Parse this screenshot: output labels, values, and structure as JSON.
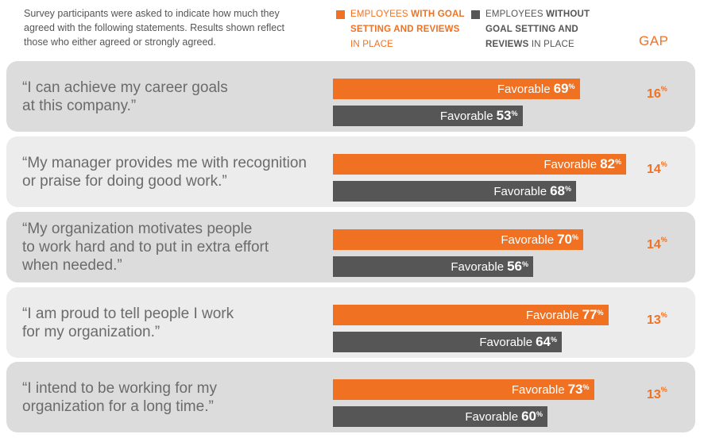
{
  "intro": "Survey participants were asked to indicate how much they agreed with the following statements. Results shown reflect those who either agreed or strongly agreed.",
  "legend": {
    "with": {
      "pre": "EMPLOYEES ",
      "bold": "WITH GOAL SETTING AND REVIEWS",
      "post": " IN PLACE",
      "color": "#f07122"
    },
    "without": {
      "pre": "EMPLOYEES ",
      "bold": "WITHOUT GOAL SETTING AND REVIEWS",
      "post": " IN PLACE",
      "color": "#565656"
    }
  },
  "gap_title": "GAP",
  "bar_prefix": "Favorable",
  "percent_sign": "%",
  "chart_data": {
    "type": "bar",
    "orientation": "horizontal",
    "categories": [
      "“I can achieve my career goals at this company.”",
      "“My manager provides me with recognition or praise for doing good work.”",
      "“My organization motivates people to work hard and to put in extra effort when needed.”",
      "“I am proud to tell people I work for my organization.”",
      "“I intend to be working for my organization for a long time.”"
    ],
    "series": [
      {
        "name": "EMPLOYEES WITH GOAL SETTING AND REVIEWS IN PLACE",
        "values": [
          69,
          82,
          70,
          77,
          73
        ],
        "color": "#f07122"
      },
      {
        "name": "EMPLOYEES WITHOUT GOAL SETTING AND REVIEWS IN PLACE",
        "values": [
          53,
          68,
          56,
          64,
          60
        ],
        "color": "#565656"
      }
    ],
    "gap": [
      16,
      14,
      14,
      13,
      13
    ],
    "xlim": [
      0,
      100
    ]
  }
}
